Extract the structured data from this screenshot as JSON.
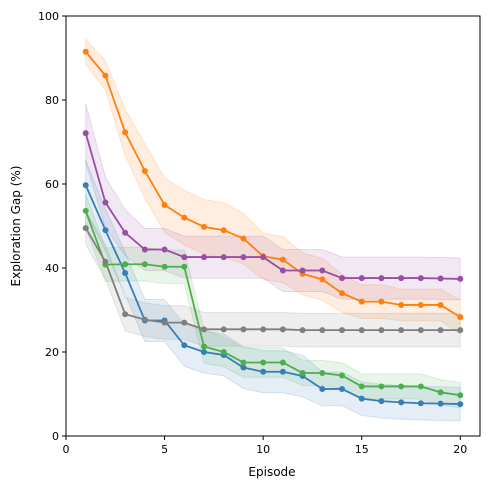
{
  "chart_data": {
    "type": "line",
    "title": "",
    "xlabel": "Episode",
    "ylabel": "Exploration Gap (%)",
    "xlim": [
      0,
      21
    ],
    "ylim": [
      0,
      100
    ],
    "xticks": [
      0,
      5,
      10,
      15,
      20
    ],
    "yticks": [
      0,
      20,
      40,
      60,
      80,
      100
    ],
    "x": [
      1,
      2,
      3,
      4,
      5,
      6,
      7,
      8,
      9,
      10,
      11,
      12,
      13,
      14,
      15,
      16,
      17,
      18,
      19,
      20
    ],
    "band_shading": true,
    "grid": false,
    "legend": "none",
    "series": [
      {
        "color": "#ff7f0e",
        "values": [
          91.5,
          85.8,
          72.3,
          63.1,
          55.0,
          52.0,
          49.8,
          49.0,
          47.0,
          42.8,
          42.0,
          38.6,
          37.3,
          34.0,
          32.0,
          32.0,
          31.2,
          31.2,
          31.2,
          28.3
        ],
        "band": [
          3.0,
          3.5,
          5.5,
          6.5,
          6.5,
          6.5,
          6.5,
          6.5,
          6.0,
          5.5,
          5.5,
          5.0,
          5.0,
          4.5,
          4.0,
          4.0,
          3.8,
          3.8,
          3.8,
          4.0
        ]
      },
      {
        "color": "#984ea3",
        "values": [
          72.1,
          55.6,
          48.4,
          44.4,
          44.4,
          42.6,
          42.6,
          42.6,
          42.6,
          42.6,
          39.4,
          39.4,
          39.4,
          37.6,
          37.6,
          37.6,
          37.6,
          37.6,
          37.5,
          37.4
        ],
        "band": [
          7.0,
          6.0,
          5.5,
          5.0,
          5.0,
          5.0,
          5.0,
          5.0,
          5.0,
          5.0,
          5.0,
          5.0,
          5.0,
          5.0,
          5.0,
          5.0,
          5.0,
          5.0,
          5.0,
          5.0
        ]
      },
      {
        "color": "#377eb8",
        "values": [
          59.7,
          49.0,
          38.8,
          27.5,
          27.5,
          21.6,
          20.0,
          19.3,
          16.3,
          15.3,
          15.3,
          14.3,
          11.2,
          11.2,
          8.9,
          8.3,
          8.0,
          7.8,
          7.7,
          7.6
        ],
        "band": [
          6.0,
          5.0,
          5.0,
          5.0,
          5.0,
          5.0,
          5.0,
          5.0,
          5.0,
          5.0,
          5.0,
          5.0,
          4.0,
          4.0,
          4.0,
          4.0,
          4.0,
          4.0,
          4.0,
          4.0
        ]
      },
      {
        "color": "#4daf4a",
        "values": [
          53.6,
          40.8,
          40.9,
          40.9,
          40.3,
          40.3,
          21.3,
          20.0,
          17.5,
          17.5,
          17.5,
          15.0,
          15.0,
          14.4,
          11.8,
          11.8,
          11.8,
          11.8,
          10.4,
          9.7
        ],
        "band": [
          4.0,
          4.0,
          4.0,
          4.0,
          4.0,
          4.0,
          4.0,
          3.5,
          3.5,
          3.5,
          3.5,
          3.0,
          3.0,
          3.0,
          3.0,
          3.0,
          3.0,
          3.0,
          3.0,
          3.0
        ]
      },
      {
        "color": "#7f7f7f",
        "values": [
          49.5,
          41.5,
          29.0,
          27.7,
          27.0,
          27.0,
          25.4,
          25.4,
          25.4,
          25.4,
          25.4,
          25.2,
          25.2,
          25.2,
          25.2,
          25.2,
          25.2,
          25.2,
          25.2,
          25.2
        ],
        "band": [
          4.0,
          4.0,
          4.0,
          4.0,
          4.0,
          4.0,
          4.0,
          4.0,
          4.0,
          4.0,
          4.0,
          4.0,
          4.0,
          4.0,
          4.0,
          4.0,
          4.0,
          4.0,
          4.0,
          4.0
        ]
      }
    ]
  }
}
